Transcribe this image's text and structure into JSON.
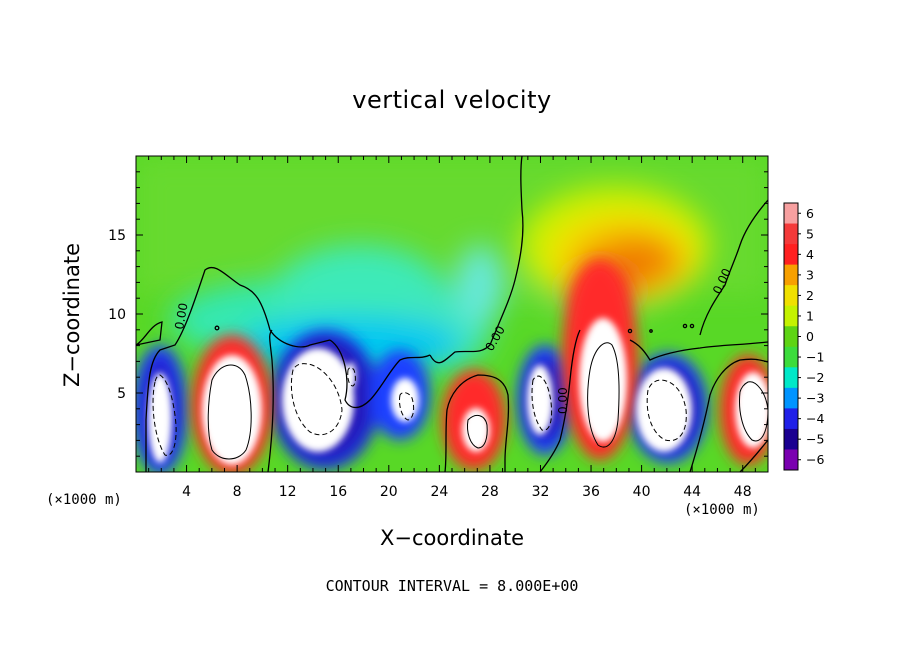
{
  "chart_data": {
    "type": "heatmap",
    "title": "vertical velocity",
    "xlabel": "X−coordinate",
    "ylabel": "Z−coordinate",
    "x_unit": "(×1000 m)",
    "footnote": "CONTOUR INTERVAL = 8.000E+00",
    "xlim": [
      0,
      50
    ],
    "ylim": [
      0,
      20
    ],
    "x_ticks": [
      "4",
      "8",
      "12",
      "16",
      "20",
      "24",
      "28",
      "32",
      "36",
      "40",
      "44",
      "48"
    ],
    "y_ticks": [
      "5",
      "10",
      "15"
    ],
    "colorbar": {
      "labels": [
        "6",
        "5",
        "4",
        "3",
        "2",
        "1",
        "0",
        "−1",
        "−2",
        "−3",
        "−4",
        "−5",
        "−6"
      ],
      "colors": [
        "#f7a0a0",
        "#f43a3a",
        "#ff2020",
        "#f7a000",
        "#f0e000",
        "#c4f200",
        "#5ed414",
        "#3cdc3c",
        "#00e8c8",
        "#0094ff",
        "#2020e8",
        "#1a0090",
        "#7a00b0"
      ],
      "range": [
        -6,
        6
      ]
    },
    "contour_labels": [
      "0.00",
      "0.00",
      "0.00",
      "0.00",
      "0.00"
    ],
    "features": [
      {
        "type": "updraft",
        "x": 7,
        "z": 4
      },
      {
        "type": "downdraft",
        "x": 13.5,
        "z": 4.5
      },
      {
        "type": "updraft",
        "x": 26,
        "z": 3
      },
      {
        "type": "downdraft",
        "x": 31.5,
        "z": 5
      },
      {
        "type": "updraft",
        "x": 36.5,
        "z": 7
      },
      {
        "type": "updraft",
        "x": 37,
        "z": 13
      },
      {
        "type": "downdraft",
        "x": 42,
        "z": 4
      },
      {
        "type": "updraft",
        "x": 48.5,
        "z": 4
      }
    ]
  }
}
